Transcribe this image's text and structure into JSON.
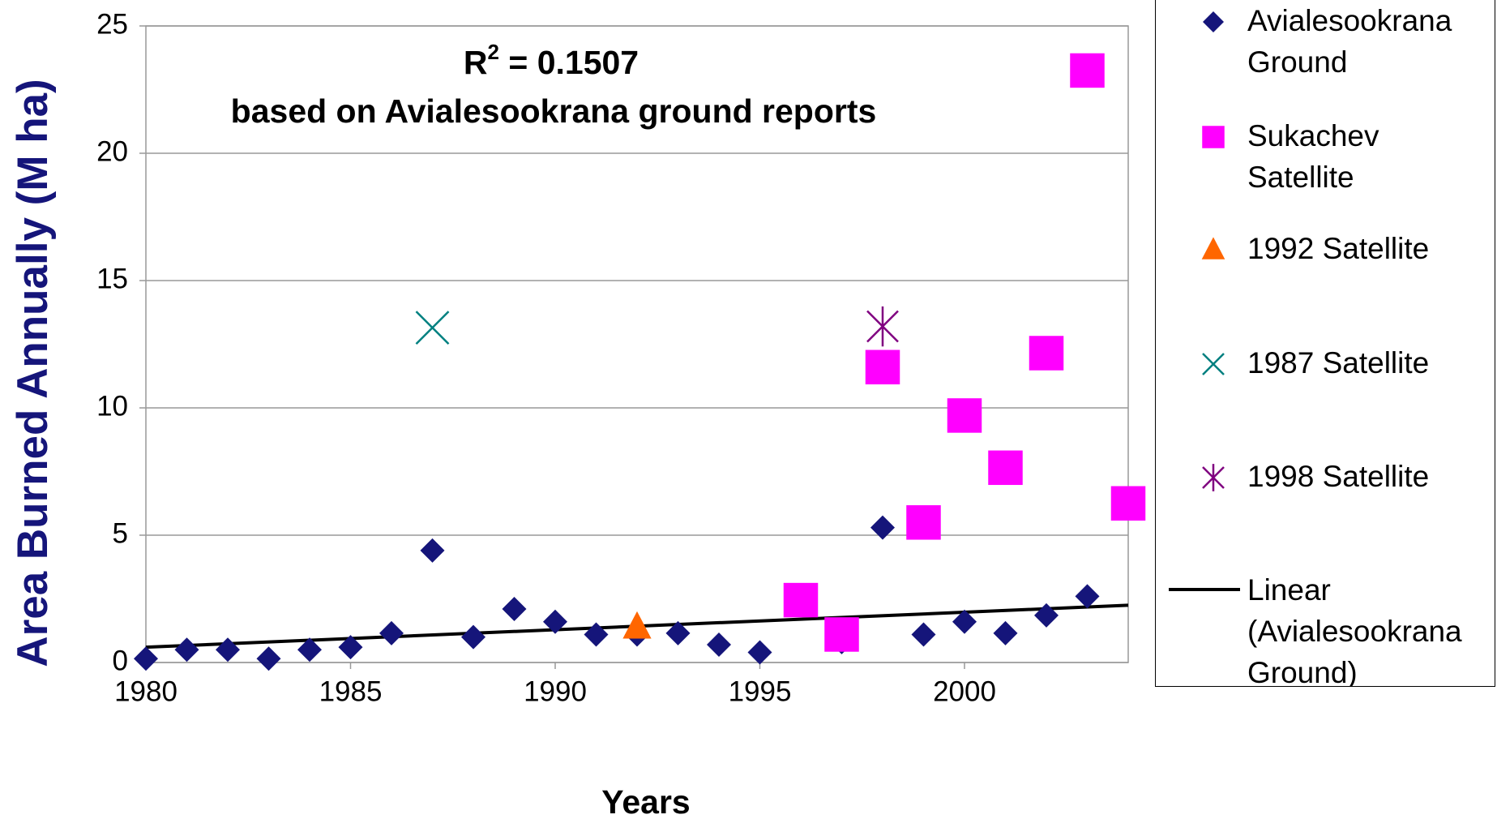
{
  "chart_data": {
    "type": "scatter",
    "annotation": {
      "prefix": "R",
      "superscript": "2",
      "text": " = 0.1507",
      "note": "based on Avialesookrana ground reports"
    },
    "x_label": "Years",
    "y_label": "Area Burned Annually (M ha)",
    "xlim": [
      1980,
      2004
    ],
    "xticks": [
      1980,
      1985,
      1990,
      1995,
      2000
    ],
    "ylim": [
      0,
      25
    ],
    "yticks": [
      0,
      5,
      10,
      15,
      20,
      25
    ],
    "grid": true,
    "series": [
      {
        "name": "Avialesookrana Ground",
        "marker": "diamond",
        "color": "#15157a",
        "x": [
          1980,
          1981,
          1982,
          1983,
          1984,
          1985,
          1986,
          1987,
          1988,
          1989,
          1990,
          1991,
          1992,
          1993,
          1994,
          1995,
          1997,
          1998,
          1999,
          2000,
          2001,
          2002,
          2003
        ],
        "values": [
          0.15,
          0.5,
          0.5,
          0.15,
          0.5,
          0.6,
          1.15,
          4.4,
          1.0,
          2.1,
          1.6,
          1.1,
          1.1,
          1.15,
          0.7,
          0.4,
          0.8,
          5.3,
          1.1,
          1.6,
          1.15,
          1.85,
          2.6
        ]
      },
      {
        "name": "Sukachev Satellite",
        "marker": "square",
        "color": "#ff00ff",
        "x": [
          1996,
          1997,
          1998,
          1999,
          2000,
          2001,
          2002,
          2003,
          2004
        ],
        "values": [
          2.45,
          1.1,
          11.6,
          5.5,
          9.7,
          7.65,
          12.15,
          23.25,
          6.25
        ]
      },
      {
        "name": "1992 Satellite",
        "marker": "triangle",
        "color": "#ff6600",
        "x": [
          1992
        ],
        "values": [
          1.4
        ]
      },
      {
        "name": "1987 Satellite",
        "marker": "x",
        "color": "#008080",
        "x": [
          1987
        ],
        "values": [
          13.15
        ]
      },
      {
        "name": "1998 Satellite",
        "marker": "star",
        "color": "#800080",
        "x": [
          1998
        ],
        "values": [
          13.2
        ]
      },
      {
        "name": "Linear (Avialesookrana Ground)",
        "marker": "line",
        "color": "#000000",
        "x": [
          1980,
          2004
        ],
        "values": [
          0.6,
          2.25
        ]
      }
    ]
  }
}
